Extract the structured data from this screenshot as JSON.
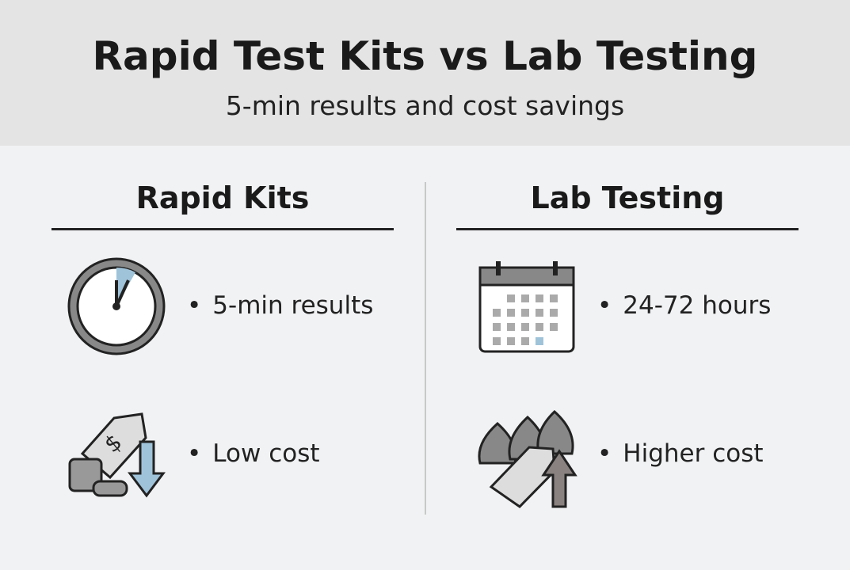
{
  "header": {
    "title": "Rapid Test Kits vs Lab Testing",
    "subtitle": "5-min results and cost savings"
  },
  "columns": [
    {
      "heading": "Rapid Kits",
      "items": [
        "5-min results",
        "Low cost"
      ]
    },
    {
      "heading": "Lab Testing",
      "items": [
        "24-72 hours",
        "Higher cost"
      ]
    }
  ]
}
